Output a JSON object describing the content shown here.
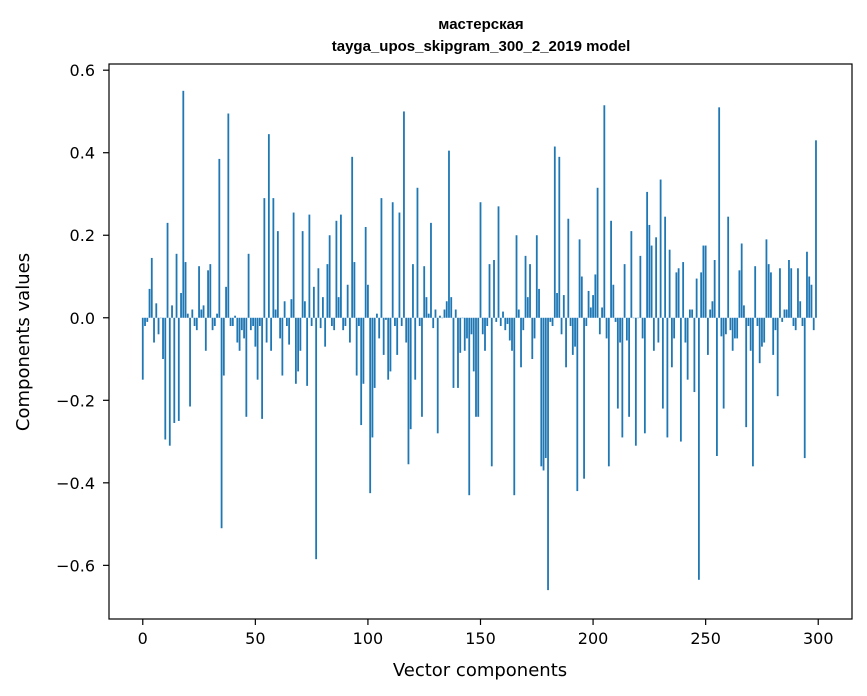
{
  "chart_data": {
    "type": "bar",
    "title_line1": "мастерская",
    "title_line2": "tayga_upos_skipgram_300_2_2019 model",
    "xlabel": "Vector components",
    "ylabel": "Components values",
    "xlim": [
      -15,
      315
    ],
    "ylim": [
      -0.73,
      0.615
    ],
    "xticks": [
      0,
      50,
      100,
      150,
      200,
      250,
      300
    ],
    "xtick_labels": [
      "0",
      "50",
      "100",
      "150",
      "200",
      "250",
      "300"
    ],
    "yticks": [
      -0.6,
      -0.4,
      -0.2,
      0.0,
      0.2,
      0.4,
      0.6
    ],
    "ytick_labels": [
      "−0.6",
      "−0.4",
      "−0.2",
      "0.0",
      "0.2",
      "0.4",
      "0.6"
    ],
    "bar_color": "#1f77b4",
    "grid": false,
    "values": [
      -0.15,
      -0.02,
      -0.01,
      0.07,
      0.145,
      -0.06,
      0.035,
      -0.04,
      0.0,
      -0.1,
      -0.295,
      0.23,
      -0.31,
      0.03,
      -0.255,
      0.155,
      -0.25,
      0.06,
      0.55,
      0.135,
      0.01,
      -0.215,
      0.02,
      -0.02,
      -0.03,
      0.125,
      0.02,
      0.03,
      -0.08,
      0.115,
      0.13,
      -0.03,
      -0.02,
      0.01,
      0.385,
      -0.51,
      -0.14,
      0.075,
      0.495,
      -0.02,
      -0.02,
      0.005,
      -0.06,
      -0.08,
      -0.03,
      -0.05,
      -0.24,
      0.155,
      -0.03,
      -0.02,
      -0.07,
      -0.15,
      -0.02,
      -0.245,
      0.29,
      -0.06,
      0.445,
      -0.08,
      0.29,
      0.02,
      0.21,
      -0.05,
      -0.14,
      0.04,
      -0.02,
      -0.065,
      0.045,
      0.255,
      -0.16,
      -0.13,
      -0.08,
      0.21,
      0.04,
      -0.165,
      0.25,
      -0.02,
      0.075,
      -0.585,
      0.12,
      -0.025,
      0.05,
      -0.07,
      0.13,
      0.2,
      -0.02,
      -0.03,
      0.235,
      0.05,
      0.25,
      -0.03,
      -0.02,
      0.08,
      -0.06,
      0.39,
      0.135,
      -0.14,
      -0.02,
      -0.26,
      -0.16,
      0.22,
      0.08,
      -0.425,
      -0.29,
      -0.17,
      0.01,
      -0.05,
      0.29,
      -0.09,
      -0.005,
      -0.15,
      -0.13,
      0.28,
      -0.02,
      -0.09,
      0.255,
      -0.02,
      0.5,
      -0.06,
      -0.355,
      -0.27,
      0.13,
      -0.15,
      0.315,
      -0.02,
      -0.24,
      0.125,
      0.05,
      0.01,
      0.23,
      -0.025,
      0.02,
      -0.28,
      0.005,
      0.0,
      0.02,
      0.04,
      0.405,
      0.05,
      -0.17,
      0.02,
      -0.17,
      -0.085,
      0.0,
      -0.08,
      -0.05,
      -0.43,
      -0.04,
      -0.13,
      -0.24,
      -0.24,
      0.28,
      -0.04,
      -0.08,
      -0.02,
      0.13,
      -0.36,
      0.14,
      -0.01,
      0.27,
      -0.02,
      0.015,
      -0.03,
      -0.015,
      -0.055,
      -0.08,
      -0.43,
      0.2,
      0.02,
      -0.12,
      -0.03,
      0.15,
      0.05,
      0.13,
      -0.1,
      -0.05,
      0.2,
      0.07,
      -0.36,
      -0.37,
      -0.34,
      -0.66,
      -0.01,
      -0.02,
      0.415,
      0.06,
      0.39,
      -0.04,
      0.055,
      -0.12,
      0.24,
      -0.02,
      -0.09,
      -0.07,
      -0.42,
      0.19,
      0.1,
      -0.39,
      -0.02,
      0.065,
      0.025,
      0.055,
      0.105,
      0.315,
      -0.04,
      0.025,
      0.515,
      -0.05,
      -0.36,
      0.235,
      0.08,
      -0.01,
      -0.22,
      -0.06,
      -0.29,
      0.13,
      -0.055,
      -0.24,
      0.21,
      0.0,
      -0.31,
      0.0,
      0.15,
      -0.05,
      -0.28,
      0.305,
      0.225,
      0.175,
      -0.08,
      0.195,
      -0.06,
      0.335,
      -0.22,
      0.245,
      -0.29,
      0.165,
      -0.12,
      -0.05,
      0.11,
      0.12,
      -0.3,
      0.135,
      -0.06,
      -0.15,
      0.02,
      0.02,
      -0.18,
      0.095,
      -0.635,
      0.11,
      0.175,
      0.175,
      -0.09,
      0.02,
      0.04,
      0.14,
      -0.335,
      0.51,
      -0.045,
      -0.22,
      -0.04,
      0.245,
      -0.03,
      -0.08,
      -0.05,
      -0.05,
      0.115,
      0.18,
      0.03,
      -0.265,
      -0.02,
      -0.08,
      -0.36,
      0.125,
      -0.02,
      -0.11,
      -0.07,
      -0.06,
      0.19,
      0.13,
      0.11,
      -0.09,
      -0.03,
      -0.19,
      0.12,
      -0.01,
      0.02,
      0.02,
      0.14,
      0.12,
      -0.02,
      -0.03,
      0.12,
      0.04,
      -0.02,
      -0.34,
      0.16,
      0.1,
      0.08,
      -0.03,
      0.43
    ]
  }
}
